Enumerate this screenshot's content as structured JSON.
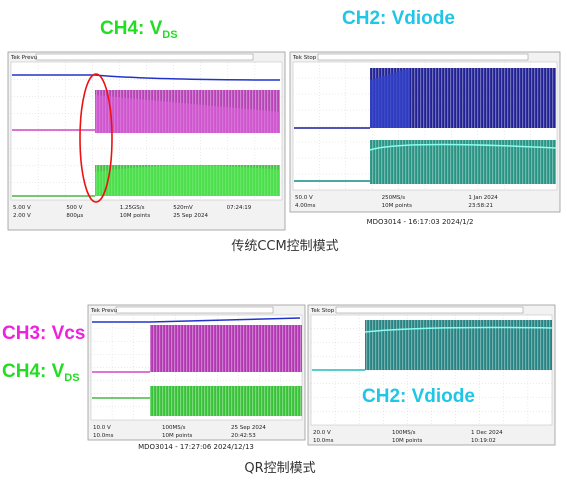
{
  "labels": {
    "top_vds": {
      "text": "CH4: V",
      "sub": "DS"
    },
    "top_vdiode": "CH2: Vdiode",
    "bottom_vcs": "CH3: Vcs",
    "bottom_vds": {
      "text": "CH4: V",
      "sub": "DS"
    },
    "bottom_vdiode": "CH2: Vdiode"
  },
  "captions": {
    "top": "传统CCM控制模式",
    "bottom": "QR控制模式"
  },
  "scopes": [
    {
      "tek": "Tek Prevu",
      "footer": null,
      "readouts": [
        "5.00 V",
        "2.00 V",
        "500 V",
        "800μs",
        "1.25GS/s",
        "10M points",
        "520mV",
        "25 Sep 2024",
        "07:24:19"
      ]
    },
    {
      "tek": "Tek Stop",
      "footer": "MDO3014 - 16:17:03   2024/1/2",
      "readouts": [
        "50.0 V",
        "4.00ms",
        "250MS/s",
        "10M points",
        "1 Jan 2024",
        "23:58:21"
      ]
    },
    {
      "tek": "Tek Prevu",
      "footer": "MDO3014 - 17:27:06   2024/12/13",
      "readouts": [
        "10.0 V",
        "10.0ms",
        "100MS/s",
        "10M points",
        "25 Sep 2024",
        "20:42:53"
      ]
    },
    {
      "tek": "Tek Stop",
      "footer": null,
      "readouts": [
        "20.0 V",
        "10.0ms",
        "100MS/s",
        "10M points",
        "1 Dec 2024",
        "10:19:02"
      ]
    }
  ]
}
